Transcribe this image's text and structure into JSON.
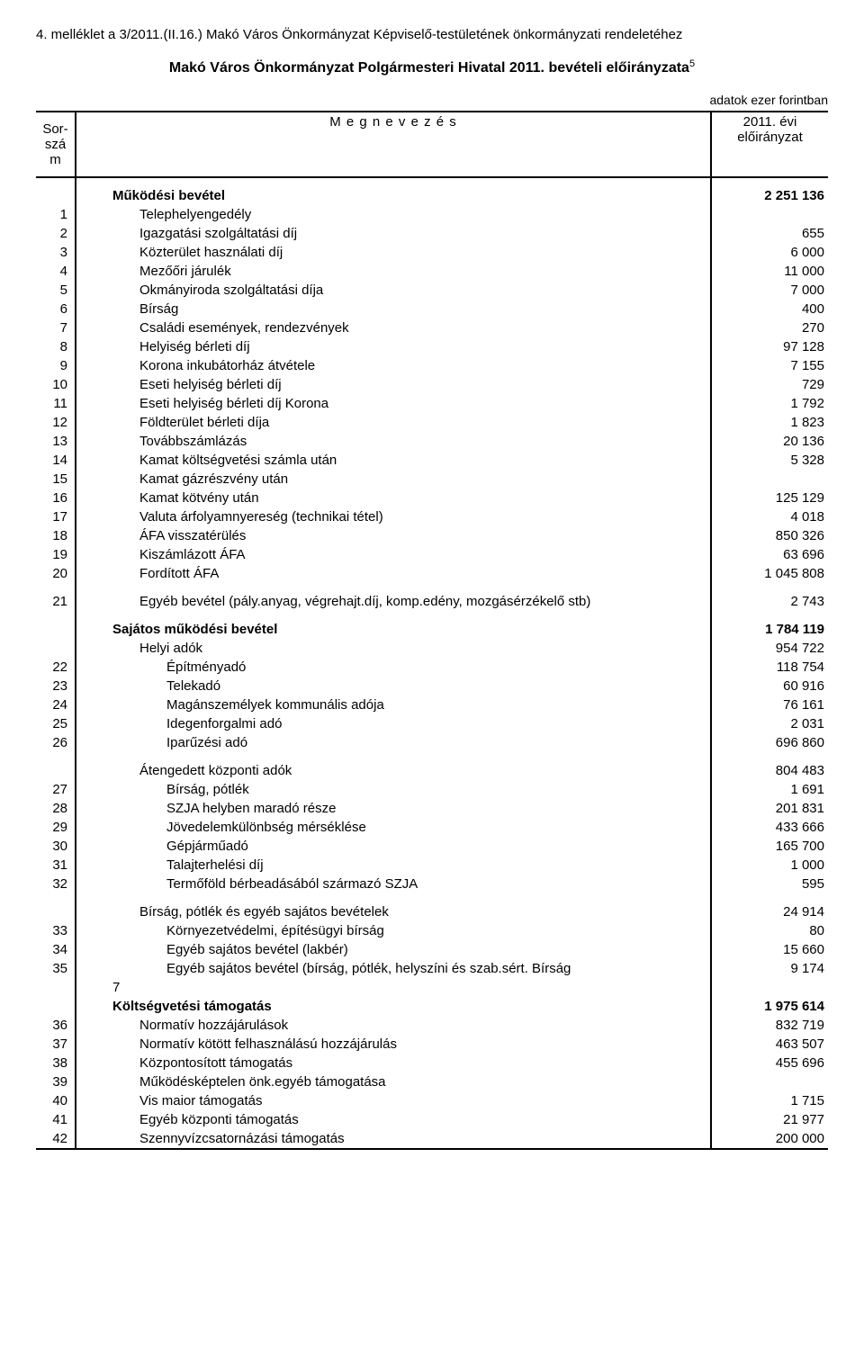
{
  "header_line": "4. melléklet a 3/2011.(II.16.) Makó Város Önkormányzat Képviselő-testületének önkormányzati rendeletéhez",
  "title_main": "Makó Város Önkormányzat Polgármesteri Hivatal 2011. bevételi előirányzata",
  "title_sup": "5",
  "units": "adatok ezer forintban",
  "col_headers": {
    "left": "Sor-szá m",
    "mid": "M e g n e v e z é s",
    "right_line1": "2011. évi",
    "right_line2": "előirányzat"
  },
  "rows": [
    {
      "type": "spacer"
    },
    {
      "type": "heading",
      "bold": true,
      "indent": 1,
      "label": "Működési bevétel",
      "value": "2 251 136"
    },
    {
      "num": "1",
      "indent": 2,
      "label": "Telephelyengedély",
      "value": ""
    },
    {
      "num": "2",
      "indent": 2,
      "label": "Igazgatási szolgáltatási díj",
      "value": "655"
    },
    {
      "num": "3",
      "indent": 2,
      "label": "Közterület használati díj",
      "value": "6 000"
    },
    {
      "num": "4",
      "indent": 2,
      "label": "Mezőőri járulék",
      "value": "11 000"
    },
    {
      "num": "5",
      "indent": 2,
      "label": "Okmányiroda szolgáltatási díja",
      "value": "7 000"
    },
    {
      "num": "6",
      "indent": 2,
      "label": "Bírság",
      "value": "400"
    },
    {
      "num": "7",
      "indent": 2,
      "label": "Családi események, rendezvények",
      "value": "270"
    },
    {
      "num": "8",
      "indent": 2,
      "label": "Helyiség bérleti díj",
      "value": "97 128"
    },
    {
      "num": "9",
      "indent": 2,
      "label": "Korona inkubátorház átvétele",
      "value": "7 155"
    },
    {
      "num": "10",
      "indent": 2,
      "label": "Eseti helyiség bérleti díj",
      "value": "729"
    },
    {
      "num": "11",
      "indent": 2,
      "label": "Eseti helyiség bérleti díj Korona",
      "value": "1 792"
    },
    {
      "num": "12",
      "indent": 2,
      "label": "Földterület bérleti díja",
      "value": "1 823"
    },
    {
      "num": "13",
      "indent": 2,
      "label": "Továbbszámlázás",
      "value": "20 136"
    },
    {
      "num": "14",
      "indent": 2,
      "label": "Kamat költségvetési számla után",
      "value": "5 328"
    },
    {
      "num": "15",
      "indent": 2,
      "label": "Kamat gázrészvény után",
      "value": ""
    },
    {
      "num": "16",
      "indent": 2,
      "label": "Kamat kötvény után",
      "value": "125 129"
    },
    {
      "num": "17",
      "indent": 2,
      "label": "Valuta árfolyamnyereség (technikai tétel)",
      "value": "4 018"
    },
    {
      "num": "18",
      "indent": 2,
      "label": "ÁFA visszatérülés",
      "value": "850 326"
    },
    {
      "num": "19",
      "indent": 2,
      "label": "Kiszámlázott ÁFA",
      "value": "63 696"
    },
    {
      "num": "20",
      "indent": 2,
      "label": "Fordított ÁFA",
      "value": "1 045 808"
    },
    {
      "type": "spacer"
    },
    {
      "num": "21",
      "indent": 2,
      "label": "Egyéb bevétel (pály.anyag, végrehajt.díj, komp.edény, mozgásérzékelő stb)",
      "value": "2 743"
    },
    {
      "type": "spacer"
    },
    {
      "type": "heading",
      "bold": true,
      "indent": 1,
      "label": "Sajátos működési bevétel",
      "value": "1 784 119"
    },
    {
      "type": "heading",
      "bold": false,
      "indent": 2,
      "label": "Helyi adók",
      "value": "954 722"
    },
    {
      "num": "22",
      "indent": 3,
      "label": "Építményadó",
      "value": "118 754"
    },
    {
      "num": "23",
      "indent": 3,
      "label": "Telekadó",
      "value": "60 916"
    },
    {
      "num": "24",
      "indent": 3,
      "label": "Magánszemélyek kommunális adója",
      "value": "76 161"
    },
    {
      "num": "25",
      "indent": 3,
      "label": "Idegenforgalmi adó",
      "value": "2 031"
    },
    {
      "num": "26",
      "indent": 3,
      "label": "Iparűzési adó",
      "value": "696 860"
    },
    {
      "type": "spacer"
    },
    {
      "type": "heading",
      "bold": false,
      "indent": 2,
      "label": "Átengedett központi adók",
      "value": "804 483"
    },
    {
      "num": "27",
      "indent": 3,
      "label": "Bírság, pótlék",
      "value": "1 691"
    },
    {
      "num": "28",
      "indent": 3,
      "label": "SZJA helyben maradó része",
      "value": "201 831"
    },
    {
      "num": "29",
      "indent": 3,
      "label": "Jövedelemkülönbség mérséklése",
      "value": "433 666"
    },
    {
      "num": "30",
      "indent": 3,
      "label": "Gépjárműadó",
      "value": "165 700"
    },
    {
      "num": "31",
      "indent": 3,
      "label": "Talajterhelési díj",
      "value": "1 000"
    },
    {
      "num": "32",
      "indent": 3,
      "label": "Termőföld bérbeadásából származó SZJA",
      "value": "595"
    },
    {
      "type": "spacer"
    },
    {
      "type": "heading",
      "bold": false,
      "indent": 2,
      "label": "Bírság, pótlék és egyéb sajátos bevételek",
      "value": "24 914"
    },
    {
      "num": "33",
      "indent": 3,
      "label": "Környezetvédelmi, építésügyi bírság",
      "value": "80"
    },
    {
      "num": "34",
      "indent": 3,
      "label": "Egyéb sajátos bevétel (lakbér)",
      "value": "15 660"
    },
    {
      "num": "35",
      "indent": 3,
      "label": "Egyéb sajátos bevétel (bírság, pótlék, helyszíni és szab.sért. Bírság",
      "value": "9 174"
    },
    {
      "type": "note7",
      "label": "7"
    },
    {
      "type": "heading",
      "bold": true,
      "indent": 1,
      "label": "Költségvetési támogatás",
      "value": "1 975 614"
    },
    {
      "num": "36",
      "indent": 2,
      "label": "Normatív hozzájárulások",
      "value": "832 719"
    },
    {
      "num": "37",
      "indent": 2,
      "label": "Normatív kötött felhasználású hozzájárulás",
      "value": "463 507"
    },
    {
      "num": "38",
      "indent": 2,
      "label": "Központosított támogatás",
      "value": "455 696"
    },
    {
      "num": "39",
      "indent": 2,
      "label": "Működésképtelen önk.egyéb támogatása",
      "value": ""
    },
    {
      "num": "40",
      "indent": 2,
      "label": "Vis maior támogatás",
      "value": "1 715"
    },
    {
      "num": "41",
      "indent": 2,
      "label": "Egyéb központi támogatás",
      "value": "21 977"
    },
    {
      "num": "42",
      "indent": 2,
      "label": "Szennyvízcsatornázási támogatás",
      "value": "200 000"
    }
  ]
}
